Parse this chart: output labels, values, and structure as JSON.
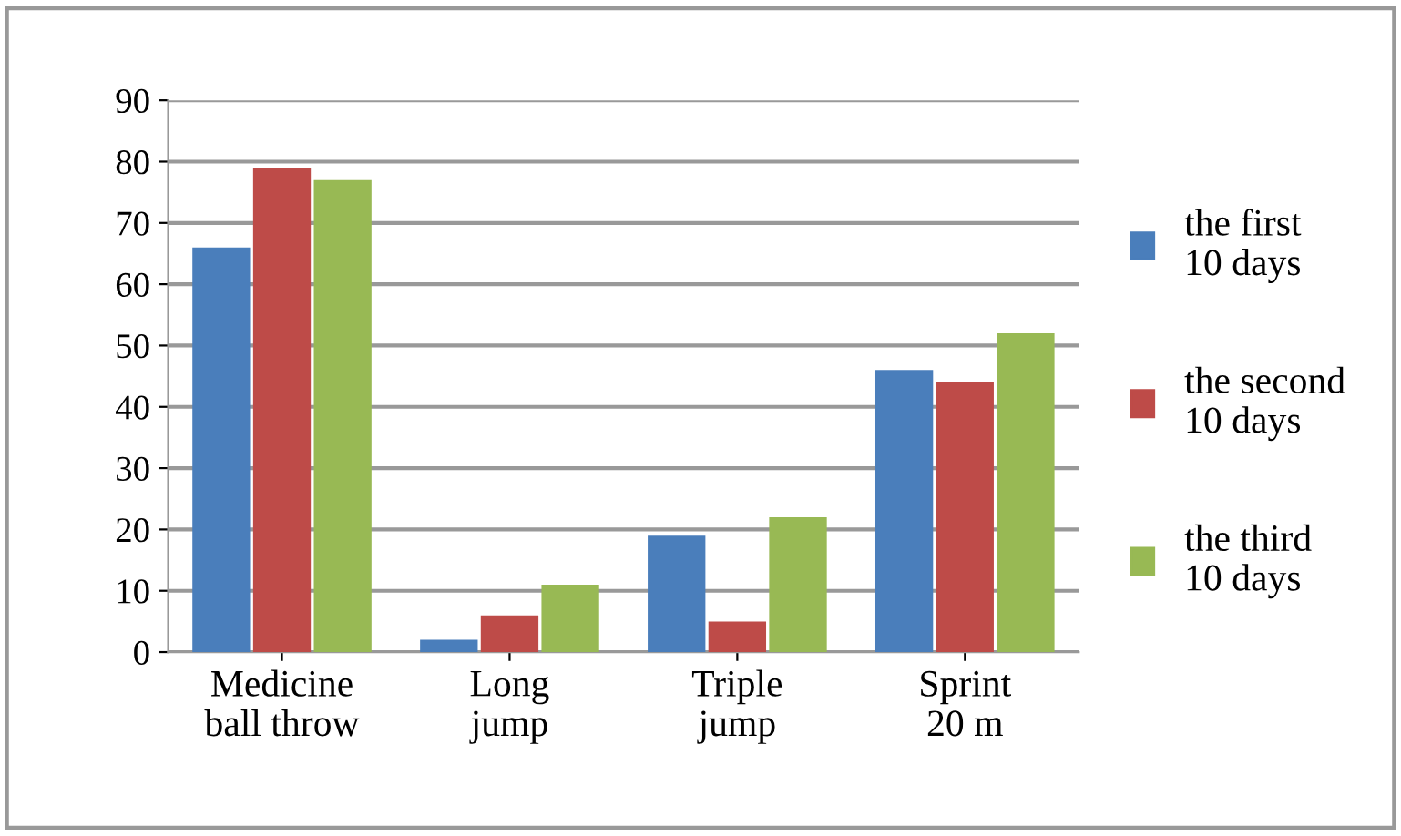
{
  "chart_data": {
    "type": "bar",
    "categories": [
      "Medicine\nball throw",
      "Long\njump",
      "Triple\njump",
      "Sprint\n20 m"
    ],
    "series": [
      {
        "name": "the first\n10 days",
        "color": "#4a7ebb",
        "values": [
          66,
          2,
          19,
          46
        ]
      },
      {
        "name": "the second\n10 days",
        "color": "#be4b48",
        "values": [
          79,
          6,
          5,
          44
        ]
      },
      {
        "name": "the third\n10 days",
        "color": "#98b954",
        "values": [
          77,
          11,
          22,
          52
        ]
      }
    ],
    "ylim": [
      0,
      90
    ],
    "yticks": [
      0,
      10,
      20,
      30,
      40,
      50,
      60,
      70,
      80,
      90
    ],
    "grid": "y",
    "legend": "right"
  }
}
